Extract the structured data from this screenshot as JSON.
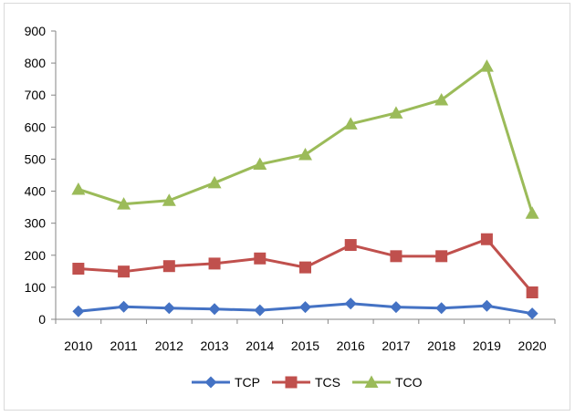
{
  "chart_data": {
    "type": "line",
    "title": "",
    "xlabel": "",
    "ylabel": "",
    "categories": [
      "2010",
      "2011",
      "2012",
      "2013",
      "2014",
      "2015",
      "2016",
      "2017",
      "2018",
      "2019",
      "2020"
    ],
    "ylim": [
      0,
      900
    ],
    "yticks": [
      0,
      100,
      200,
      300,
      400,
      500,
      600,
      700,
      800,
      900
    ],
    "grid": false,
    "legend_position": "bottom",
    "series": [
      {
        "name": "TCP",
        "color": "#4472C4",
        "marker": "diamond",
        "values": [
          25,
          39,
          35,
          32,
          28,
          38,
          49,
          38,
          35,
          42,
          18
        ]
      },
      {
        "name": "TCS",
        "color": "#C0504D",
        "marker": "square",
        "values": [
          158,
          149,
          166,
          174,
          190,
          162,
          232,
          197,
          197,
          250,
          84
        ]
      },
      {
        "name": "TCO",
        "color": "#9BBB59",
        "marker": "triangle",
        "values": [
          406,
          360,
          371,
          426,
          484,
          514,
          610,
          644,
          685,
          790,
          331
        ]
      }
    ]
  }
}
